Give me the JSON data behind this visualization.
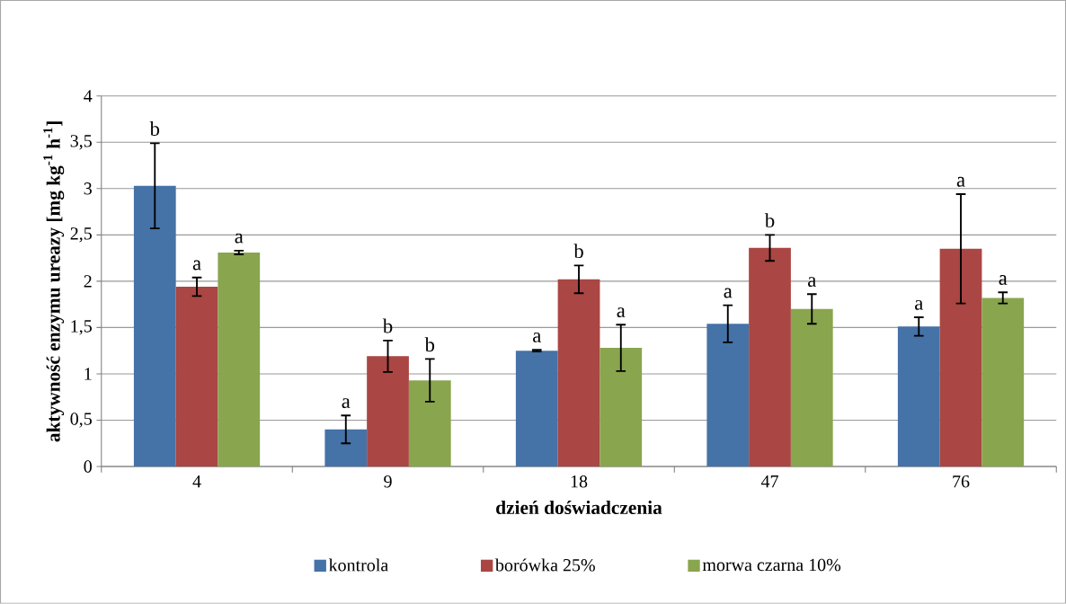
{
  "chart_data": {
    "type": "bar",
    "xlabel": "dzień doświadczenia",
    "ylabel": "aktywność enzymu ureazy [mg kg$^{-1}$ h$^{-1}$]",
    "categories": [
      "4",
      "9",
      "18",
      "47",
      "76"
    ],
    "series": [
      {
        "name": "kontrola",
        "color": "#4572a7",
        "values": [
          3.03,
          0.4,
          1.25,
          1.54,
          1.51
        ],
        "errors": [
          0.46,
          0.15,
          0.01,
          0.2,
          0.1
        ],
        "value_labels": [
          "b",
          "a",
          "a",
          "a",
          "a"
        ]
      },
      {
        "name": "borówka 25%",
        "color": "#aa4643",
        "values": [
          1.94,
          1.19,
          2.02,
          2.36,
          2.35
        ],
        "errors": [
          0.1,
          0.17,
          0.15,
          0.14,
          0.59
        ],
        "value_labels": [
          "a",
          "b",
          "b",
          "b",
          "a"
        ]
      },
      {
        "name": "morwa czarna 10%",
        "color": "#89a54e",
        "values": [
          2.31,
          0.93,
          1.28,
          1.7,
          1.82
        ],
        "errors": [
          0.02,
          0.23,
          0.25,
          0.16,
          0.06
        ],
        "value_labels": [
          "a",
          "b",
          "a",
          "a",
          "a"
        ]
      }
    ],
    "ylim": [
      0,
      4
    ],
    "yticks": [
      0,
      {
        "value": 0.5,
        "label": "0,5"
      },
      1,
      {
        "value": 1.5,
        "label": "1,5"
      },
      2,
      {
        "value": 2.5,
        "label": "2,5"
      },
      3,
      {
        "value": 3.5,
        "label": "3,5"
      },
      4
    ],
    "grid": "y",
    "legend": "bottom"
  }
}
